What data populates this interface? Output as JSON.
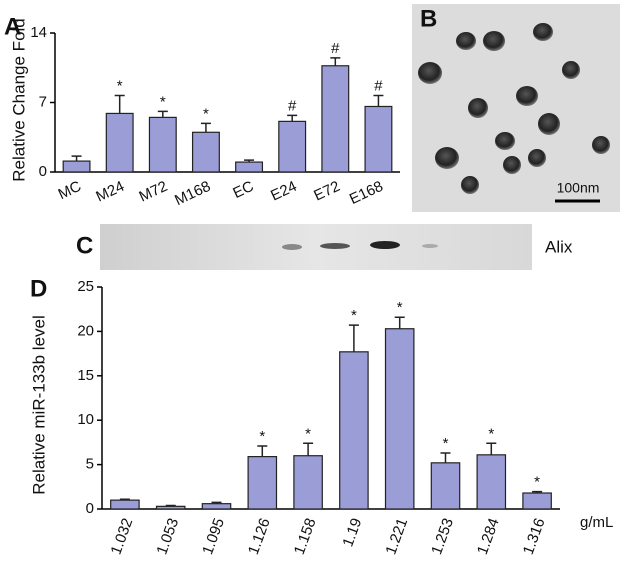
{
  "image_panel": {
    "label": "B",
    "scale_bar": "100nm"
  },
  "blot_panel": {
    "label": "C",
    "band": "Alix"
  },
  "chart_data": [
    {
      "type": "bar",
      "panel": "A",
      "y_label": "Relative Change Fold",
      "color": "#9a9dd6",
      "categories": [
        "MC",
        "M24",
        "M72",
        "M168",
        "EC",
        "E24",
        "E72",
        "E168"
      ],
      "values": [
        1.1,
        5.9,
        5.5,
        4.0,
        1.0,
        5.1,
        10.7,
        6.6
      ],
      "errors": [
        0.5,
        1.8,
        0.6,
        0.9,
        0.2,
        0.6,
        0.8,
        1.1
      ],
      "annotations": [
        null,
        "*",
        "*",
        "*",
        null,
        "#",
        "#",
        "#"
      ],
      "ylim": [
        0,
        14
      ],
      "yticks": [
        0,
        7,
        14
      ]
    },
    {
      "type": "bar",
      "panel": "D",
      "y_label": "Relative miR-133b level",
      "x_unit": "g/mL",
      "color": "#9a9dd6",
      "categories": [
        "1.032",
        "1.053",
        "1.095",
        "1.126",
        "1.158",
        "1.19",
        "1.221",
        "1.253",
        "1.284",
        "1.316"
      ],
      "values": [
        1.0,
        0.3,
        0.6,
        5.9,
        6.0,
        17.7,
        20.3,
        5.2,
        6.1,
        1.8
      ],
      "errors": [
        0.1,
        0.1,
        0.15,
        1.2,
        1.4,
        3.0,
        1.3,
        1.1,
        1.3,
        0.15
      ],
      "annotations": [
        null,
        null,
        null,
        "*",
        "*",
        "*",
        "*",
        "*",
        "*",
        "*"
      ],
      "ylim": [
        0,
        25
      ],
      "yticks": [
        0,
        5,
        10,
        15,
        20,
        25
      ]
    }
  ]
}
